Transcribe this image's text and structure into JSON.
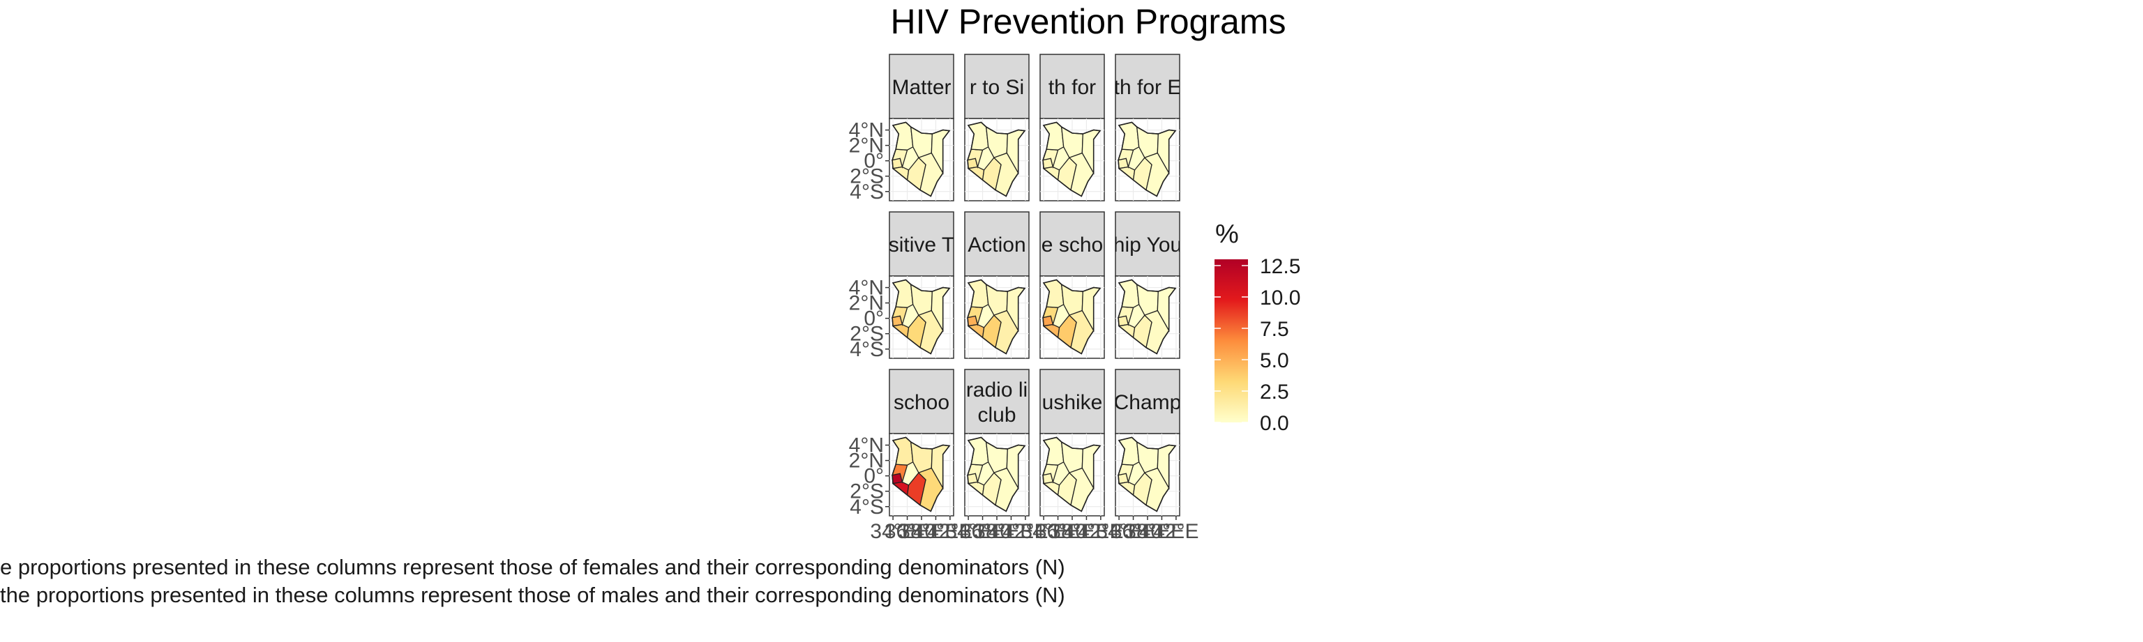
{
  "chart_data": {
    "type": "choropleth-facets",
    "title": "HIV Prevention Programs",
    "legend": {
      "title": "%",
      "ticks": [
        "12.5",
        "10.0",
        "7.5",
        "5.0",
        "2.5",
        "0.0"
      ],
      "range": [
        0,
        13
      ],
      "colors": [
        "#FFFFCC",
        "#FED976",
        "#FD8D3C",
        "#E31A1C",
        "#B10026"
      ]
    },
    "y_ticks": [
      "4°N",
      "2°N",
      "0°",
      "2°S",
      "4°S"
    ],
    "x_ticks": [
      "34°E",
      "36°E",
      "38°E",
      "40°E",
      "42°E"
    ],
    "facets": [
      {
        "label": "Matter",
        "max_pct": 1.2
      },
      {
        "label": "r to Si",
        "max_pct": 1.8
      },
      {
        "label": "th for ",
        "max_pct": 0.8
      },
      {
        "label": "th for E",
        "max_pct": 0.8
      },
      {
        "label": "sitive T",
        "max_pct": 4.5
      },
      {
        "label": "Action",
        "max_pct": 5.0
      },
      {
        "label": "e scho",
        "max_pct": 5.5
      },
      {
        "label": "hip You",
        "max_pct": 1.2
      },
      {
        "label": "schoo",
        "max_pct": 12.5
      },
      {
        "label": "radio li\nclub",
        "max_pct": 0.8
      },
      {
        "label": "ushike",
        "max_pct": 0.6
      },
      {
        "label": "Champ",
        "max_pct": 0.8
      }
    ]
  },
  "captions": [
    "e proportions presented in these columns represent those of females and their corresponding denominators (N)",
    "the proportions presented in these columns represent those of males and their corresponding denominators (N)"
  ]
}
